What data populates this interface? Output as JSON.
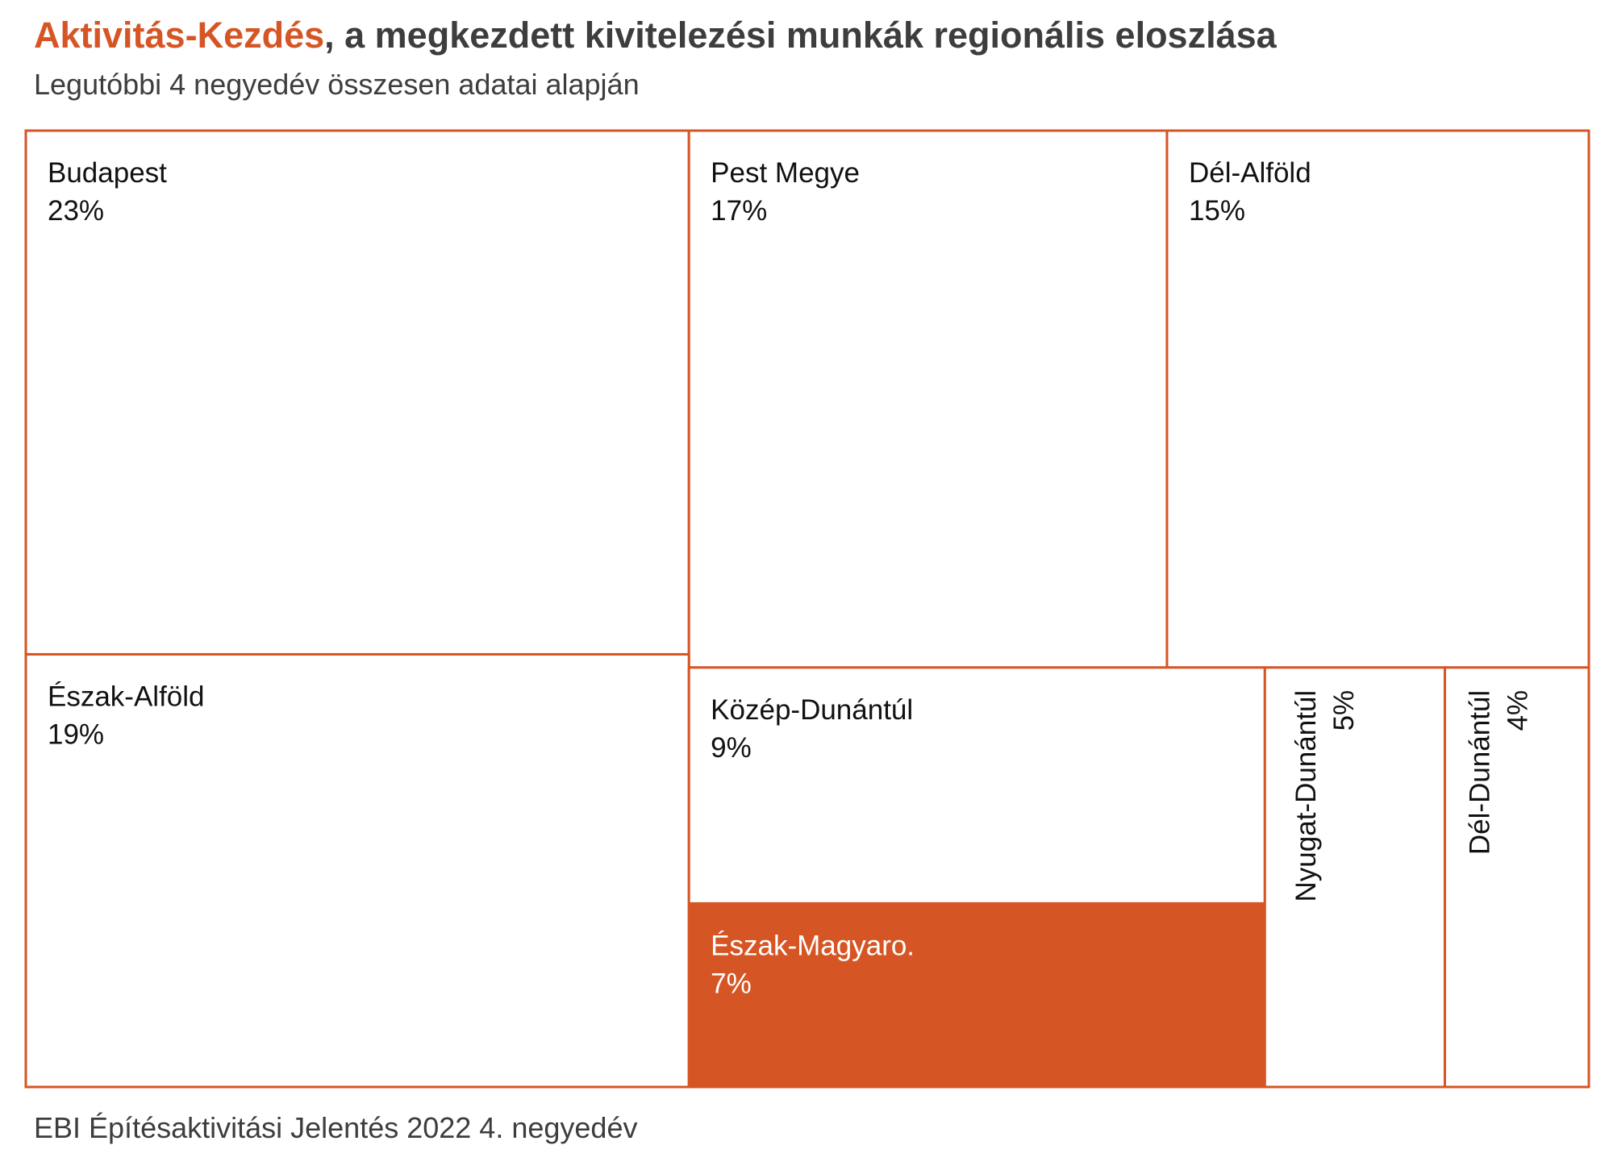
{
  "header": {
    "title_highlight": "Aktivitás-Kezdés",
    "title_rest": ", a megkezdett kivitelezési munkák regionális eloszlása",
    "subtitle": "Legutóbbi 4 negyedév összesen adatai alapján"
  },
  "footer": {
    "source": "EBI Építésaktivitási Jelentés 2022 4. negyedév"
  },
  "colors": {
    "accent": "#d65524",
    "text": "#3d3d3d",
    "label": "#111111",
    "background": "#ffffff"
  },
  "chart_data": {
    "type": "treemap",
    "unit": "%",
    "highlighted": "Észak-Magyaro.",
    "items": [
      {
        "name": "Budapest",
        "value": 23,
        "label": "23%"
      },
      {
        "name": "Pest Megye",
        "value": 17,
        "label": "17%"
      },
      {
        "name": "Dél-Alföld",
        "value": 15,
        "label": "15%"
      },
      {
        "name": "Észak-Alföld",
        "value": 19,
        "label": "19%"
      },
      {
        "name": "Közép-Dunántúl",
        "value": 9,
        "label": "9%"
      },
      {
        "name": "Észak-Magyaro.",
        "value": 7,
        "label": "7%"
      },
      {
        "name": "Nyugat-Dunántúl",
        "value": 5,
        "label": "5%"
      },
      {
        "name": "Dél-Dunántúl",
        "value": 4,
        "label": "4%"
      }
    ]
  }
}
